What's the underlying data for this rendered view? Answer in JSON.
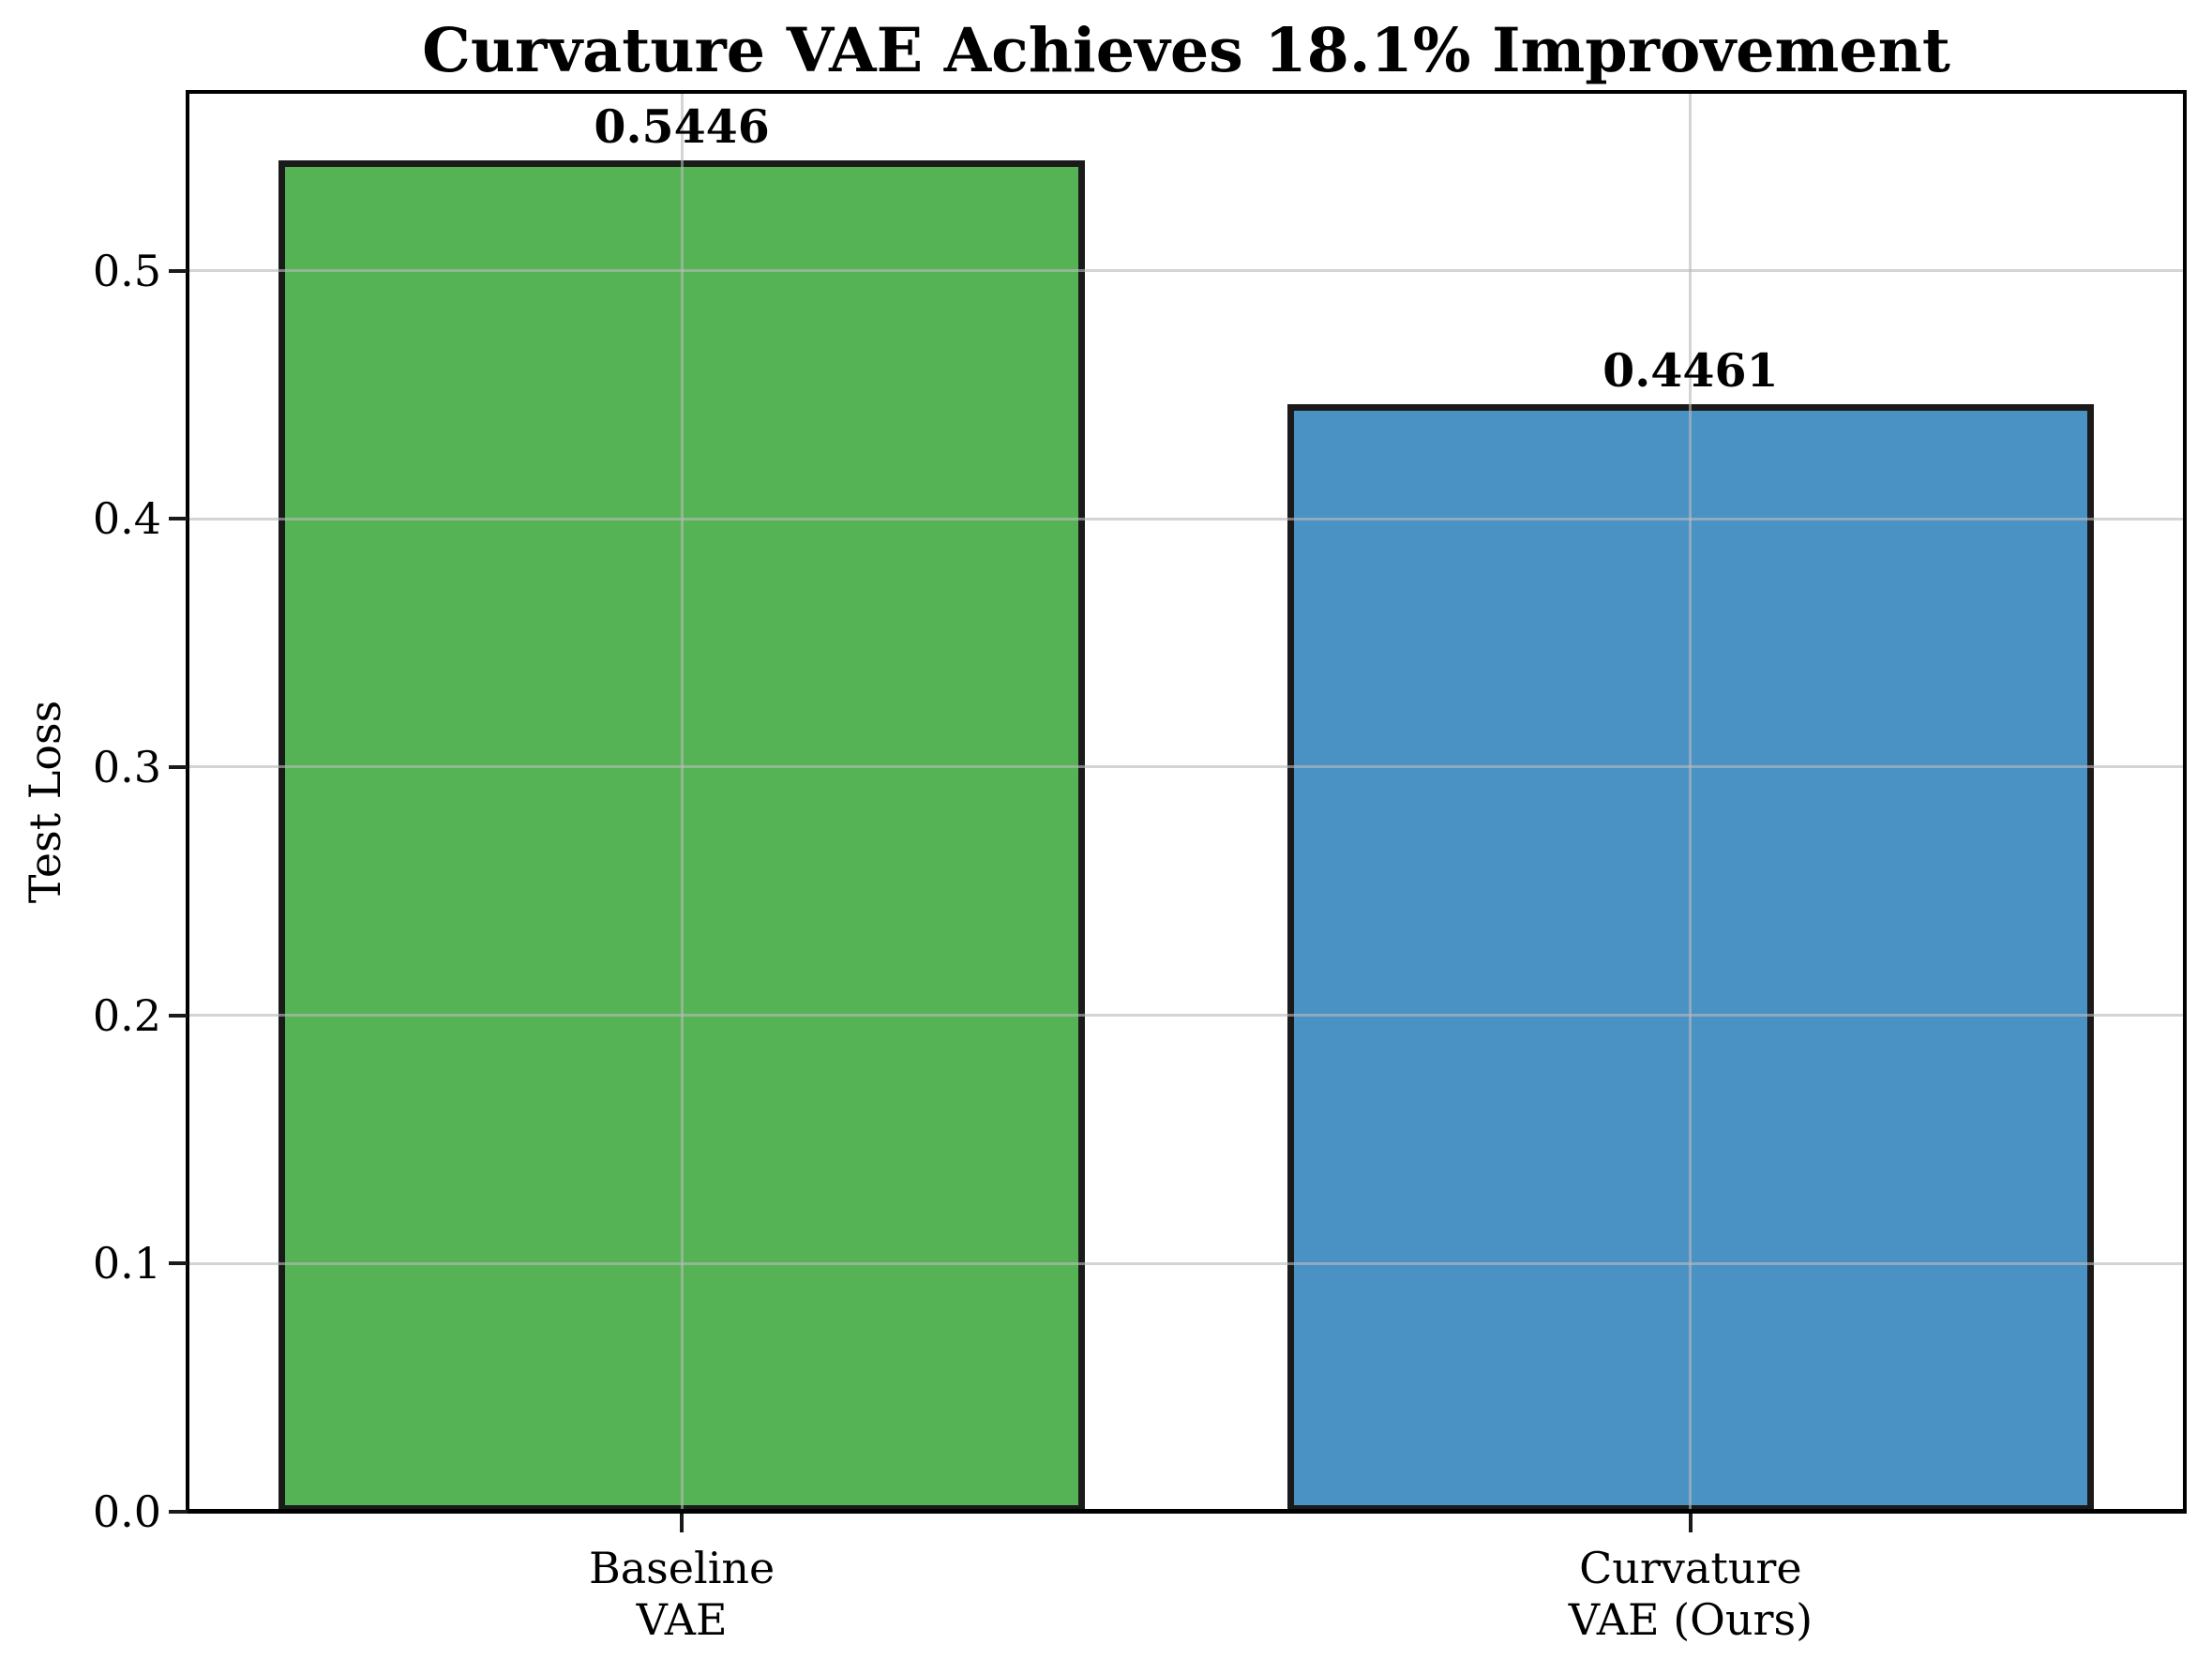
{
  "chart_data": {
    "type": "bar",
    "title": "Curvature VAE Achieves 18.1% Improvement",
    "ylabel": "Test Loss",
    "xlabel": "",
    "categories": [
      "Baseline\nVAE",
      "Curvature\nVAE (Ours)"
    ],
    "values": [
      0.5446,
      0.4461
    ],
    "value_labels": [
      "0.5446",
      "0.4461"
    ],
    "bar_colors": [
      "#55b355",
      "#4a91c4"
    ],
    "bar_edge_color": "#1a1a1a",
    "bar_positions": [
      0,
      1
    ],
    "bar_width": 0.8,
    "xlim": [
      -0.49,
      1.49
    ],
    "ylim": [
      0,
      0.572
    ],
    "yticks": [
      0,
      0.1,
      0.2,
      0.3,
      0.4,
      0.5
    ],
    "ytick_labels": [
      "0.0",
      "0.1",
      "0.2",
      "0.3",
      "0.4",
      "0.5"
    ],
    "grid": true,
    "grid_color": "rgba(185,185,185,0.62)",
    "grid_on_top": true,
    "legend_position": "none",
    "improvement_percent": "18.1%"
  }
}
